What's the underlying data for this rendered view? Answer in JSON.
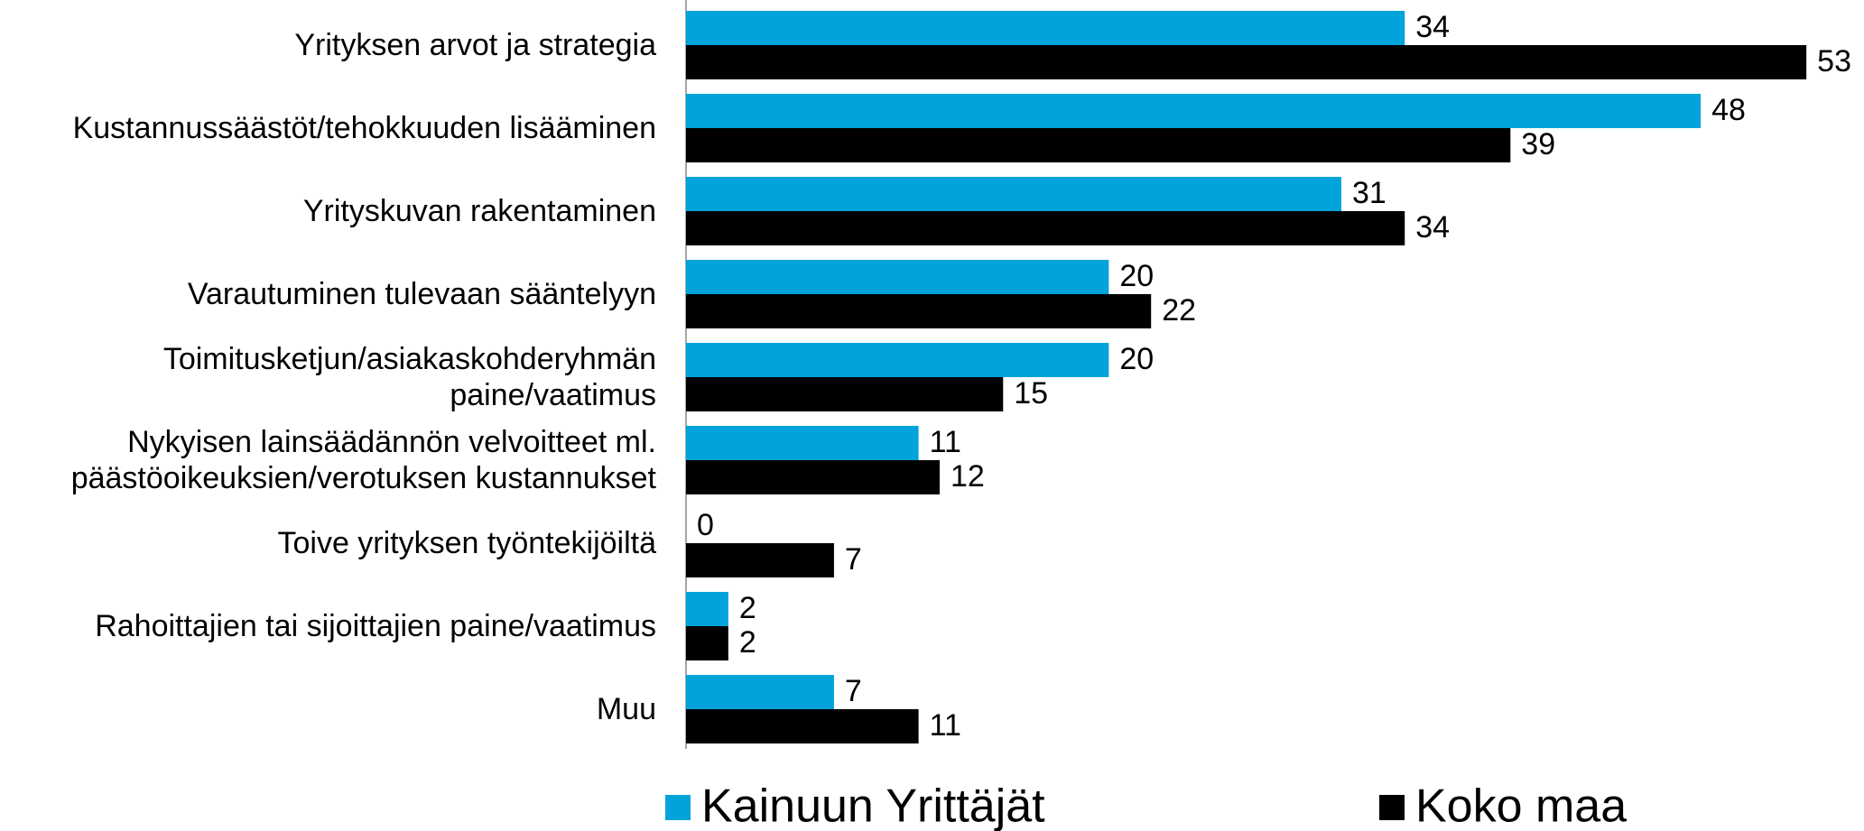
{
  "chart_data": {
    "type": "bar",
    "orientation": "horizontal",
    "categories": [
      "Yrityksen arvot ja strategia",
      "Kustannussäästöt/tehokkuuden lisääminen",
      "Yrityskuvan rakentaminen",
      "Varautuminen tulevaan sääntelyyn",
      "Toimitusketjun/asiakaskohderyhmän\npaine/vaatimus",
      "Nykyisen lainsäädännön velvoitteet ml.\npäästöoikeuksien/verotuksen kustannukset",
      "Toive yrityksen työntekijöiltä",
      "Rahoittajien tai sijoittajien paine/vaatimus",
      "Muu"
    ],
    "series": [
      {
        "name": "Kainuun Yrittäjät",
        "color": "#00a3da",
        "values": [
          34,
          48,
          31,
          20,
          20,
          11,
          0,
          2,
          7
        ]
      },
      {
        "name": "Koko maa",
        "color": "#000000",
        "values": [
          53,
          39,
          34,
          22,
          15,
          12,
          7,
          2,
          11
        ]
      }
    ],
    "xlim": [
      0,
      55
    ],
    "legend": "bottom"
  }
}
